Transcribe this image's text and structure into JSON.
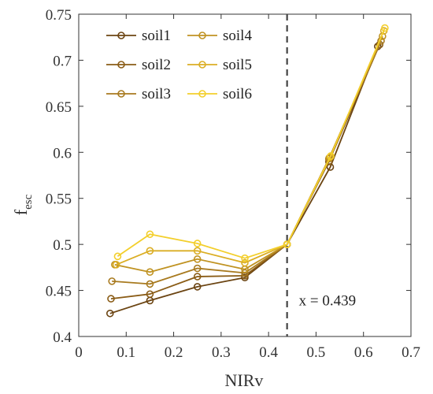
{
  "chart_data": {
    "type": "line",
    "xlabel": "NIRv",
    "ylabel": {
      "main": "f",
      "sub": "esc"
    },
    "xlim": [
      0,
      0.7
    ],
    "ylim": [
      0.4,
      0.75
    ],
    "x_ticks": [
      0,
      0.1,
      0.2,
      0.3,
      0.4,
      0.5,
      0.6,
      0.7
    ],
    "x_tick_labels": [
      "0",
      "0.1",
      "0.2",
      "0.3",
      "0.4",
      "0.5",
      "0.6",
      "0.7"
    ],
    "y_ticks": [
      0.4,
      0.45,
      0.5,
      0.55,
      0.6,
      0.65,
      0.7,
      0.75
    ],
    "y_tick_labels": [
      "0.4",
      "0.45",
      "0.5",
      "0.55",
      "0.6",
      "0.65",
      "0.7",
      "0.75"
    ],
    "grid": false,
    "legend_position": "top-left",
    "legend_columns": 2,
    "marker": "open-circle",
    "series": [
      {
        "name": "soil1",
        "color": "#6b4412",
        "points": [
          [
            0.066,
            0.425
          ],
          [
            0.15,
            0.439
          ],
          [
            0.25,
            0.454
          ],
          [
            0.35,
            0.464
          ],
          [
            0.439,
            0.5
          ],
          [
            0.53,
            0.584
          ],
          [
            0.63,
            0.715
          ]
        ]
      },
      {
        "name": "soil2",
        "color": "#8a5c16",
        "points": [
          [
            0.068,
            0.441
          ],
          [
            0.15,
            0.446
          ],
          [
            0.25,
            0.465
          ],
          [
            0.35,
            0.466
          ],
          [
            0.439,
            0.5
          ],
          [
            0.527,
            0.59
          ],
          [
            0.634,
            0.717
          ]
        ]
      },
      {
        "name": "soil3",
        "color": "#a87a1f",
        "points": [
          [
            0.07,
            0.46
          ],
          [
            0.15,
            0.457
          ],
          [
            0.25,
            0.474
          ],
          [
            0.35,
            0.469
          ],
          [
            0.439,
            0.5
          ],
          [
            0.527,
            0.593
          ],
          [
            0.637,
            0.721
          ]
        ]
      },
      {
        "name": "soil4",
        "color": "#c09322",
        "points": [
          [
            0.076,
            0.478
          ],
          [
            0.15,
            0.47
          ],
          [
            0.25,
            0.484
          ],
          [
            0.35,
            0.473
          ],
          [
            0.439,
            0.5
          ],
          [
            0.528,
            0.594
          ],
          [
            0.64,
            0.726
          ]
        ]
      },
      {
        "name": "soil5",
        "color": "#dbae24",
        "points": [
          [
            0.079,
            0.478
          ],
          [
            0.15,
            0.493
          ],
          [
            0.25,
            0.493
          ],
          [
            0.35,
            0.48
          ],
          [
            0.439,
            0.5
          ],
          [
            0.53,
            0.595
          ],
          [
            0.643,
            0.732
          ]
        ]
      },
      {
        "name": "soil6",
        "color": "#f3cf2c",
        "points": [
          [
            0.082,
            0.487
          ],
          [
            0.15,
            0.511
          ],
          [
            0.25,
            0.501
          ],
          [
            0.35,
            0.485
          ],
          [
            0.439,
            0.5
          ],
          [
            0.531,
            0.596
          ],
          [
            0.645,
            0.735
          ]
        ]
      }
    ],
    "threshold": {
      "x": 0.439,
      "label": "x = 0.439",
      "color": "#444444",
      "style": "dashed"
    }
  }
}
